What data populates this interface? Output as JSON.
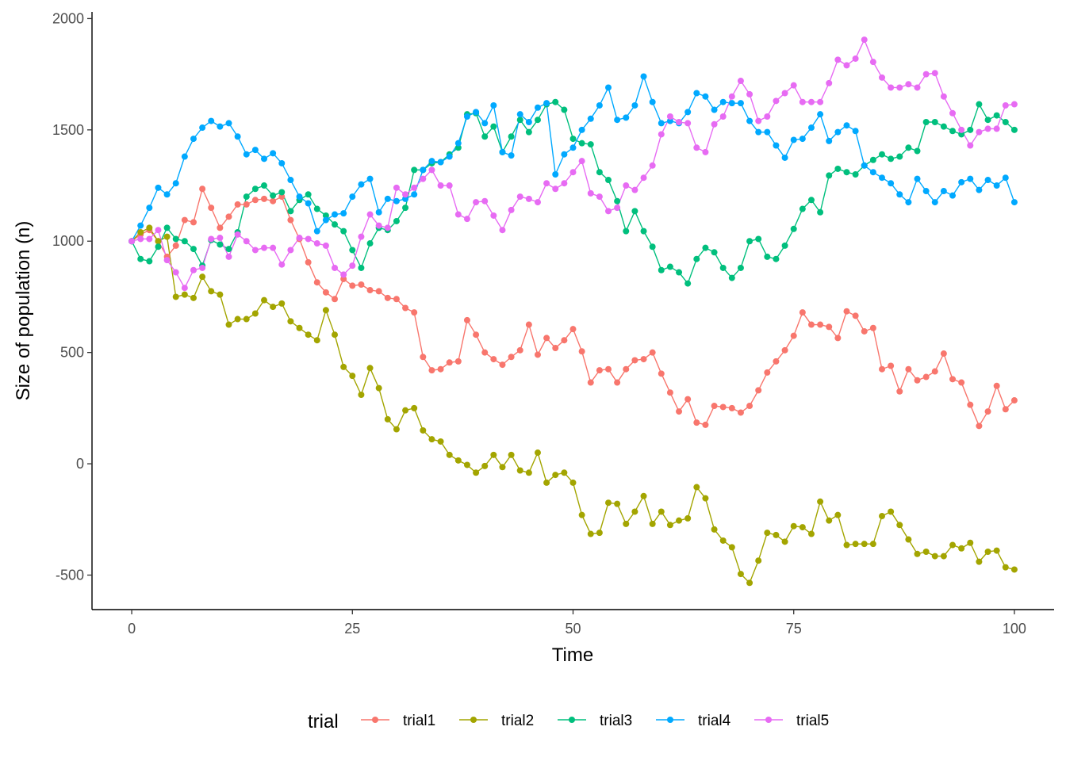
{
  "chart_data": {
    "type": "line",
    "xlabel": "Time",
    "ylabel": "Size of population (n)",
    "xlim": [
      -4.5,
      104.5
    ],
    "ylim": [
      -655,
      2030
    ],
    "x_ticks": [
      0,
      25,
      50,
      75,
      100
    ],
    "y_ticks": [
      -500,
      0,
      500,
      1000,
      1500,
      2000
    ],
    "grid": false,
    "legend": {
      "title": "trial",
      "position": "bottom"
    },
    "markers": true,
    "series": [
      {
        "name": "trial1",
        "color": "#F8766D",
        "values": [
          1000,
          1030,
          1050,
          1000,
          930,
          980,
          1095,
          1085,
          1235,
          1150,
          1060,
          1110,
          1165,
          1165,
          1185,
          1190,
          1180,
          1200,
          1095,
          1010,
          905,
          815,
          770,
          740,
          830,
          800,
          805,
          780,
          775,
          745,
          740,
          700,
          680,
          480,
          420,
          425,
          455,
          460,
          645,
          580,
          500,
          470,
          445,
          480,
          510,
          625,
          490,
          565,
          520,
          555,
          605,
          505,
          365,
          420,
          425,
          365,
          425,
          465,
          470,
          500,
          405,
          320,
          235,
          290,
          185,
          175,
          260,
          255,
          250,
          230,
          260,
          330,
          410,
          460,
          510,
          575,
          680,
          625,
          625,
          615,
          565,
          685,
          665,
          595,
          610,
          425,
          440,
          325,
          425,
          375,
          390,
          415,
          495,
          380,
          365,
          265,
          170,
          235,
          350,
          245,
          285
        ]
      },
      {
        "name": "trial2",
        "color": "#A3A500",
        "values": [
          1000,
          1040,
          1060,
          1000,
          1020,
          750,
          760,
          745,
          840,
          775,
          760,
          625,
          650,
          650,
          675,
          735,
          705,
          720,
          640,
          610,
          580,
          555,
          690,
          580,
          435,
          395,
          310,
          430,
          340,
          200,
          155,
          240,
          250,
          150,
          110,
          100,
          40,
          15,
          -5,
          -40,
          -10,
          40,
          -15,
          40,
          -30,
          -40,
          50,
          -85,
          -50,
          -40,
          -85,
          -230,
          -315,
          -310,
          -175,
          -180,
          -270,
          -215,
          -145,
          -270,
          -215,
          -275,
          -255,
          -245,
          -105,
          -155,
          -295,
          -345,
          -375,
          -495,
          -535,
          -435,
          -310,
          -320,
          -350,
          -280,
          -285,
          -315,
          -170,
          -255,
          -230,
          -365,
          -360,
          -360,
          -360,
          -235,
          -215,
          -275,
          -340,
          -405,
          -395,
          -415,
          -415,
          -365,
          -380,
          -355,
          -440,
          -395,
          -390,
          -465,
          -475
        ]
      },
      {
        "name": "trial3",
        "color": "#00BF7D",
        "values": [
          1000,
          920,
          910,
          975,
          1060,
          1010,
          1000,
          965,
          890,
          1005,
          985,
          965,
          1040,
          1200,
          1235,
          1250,
          1205,
          1220,
          1135,
          1185,
          1210,
          1145,
          1115,
          1075,
          1045,
          960,
          880,
          990,
          1060,
          1050,
          1090,
          1150,
          1320,
          1320,
          1350,
          1355,
          1390,
          1420,
          1570,
          1575,
          1470,
          1515,
          1400,
          1470,
          1545,
          1490,
          1545,
          1615,
          1625,
          1590,
          1460,
          1440,
          1435,
          1310,
          1275,
          1180,
          1045,
          1135,
          1045,
          975,
          870,
          885,
          860,
          810,
          920,
          970,
          950,
          880,
          835,
          880,
          1000,
          1010,
          930,
          920,
          980,
          1055,
          1145,
          1185,
          1130,
          1295,
          1325,
          1310,
          1300,
          1340,
          1365,
          1390,
          1370,
          1380,
          1420,
          1405,
          1535,
          1535,
          1515,
          1495,
          1480,
          1500,
          1615,
          1545,
          1565,
          1535,
          1500
        ]
      },
      {
        "name": "trial4",
        "color": "#00A9FF",
        "values": [
          1000,
          1070,
          1150,
          1240,
          1210,
          1260,
          1380,
          1460,
          1510,
          1540,
          1515,
          1530,
          1470,
          1390,
          1410,
          1370,
          1395,
          1350,
          1275,
          1200,
          1170,
          1045,
          1095,
          1120,
          1125,
          1200,
          1255,
          1280,
          1130,
          1190,
          1180,
          1190,
          1210,
          1320,
          1360,
          1355,
          1380,
          1440,
          1560,
          1580,
          1530,
          1610,
          1400,
          1385,
          1570,
          1535,
          1600,
          1620,
          1300,
          1390,
          1420,
          1500,
          1550,
          1610,
          1690,
          1545,
          1555,
          1610,
          1740,
          1625,
          1530,
          1540,
          1530,
          1580,
          1665,
          1650,
          1590,
          1625,
          1620,
          1620,
          1540,
          1490,
          1490,
          1430,
          1375,
          1455,
          1460,
          1510,
          1570,
          1450,
          1490,
          1520,
          1495,
          1340,
          1310,
          1285,
          1260,
          1210,
          1175,
          1280,
          1225,
          1175,
          1225,
          1205,
          1265,
          1280,
          1230,
          1275,
          1250,
          1285,
          1175
        ]
      },
      {
        "name": "trial5",
        "color": "#E76BF3",
        "values": [
          1000,
          1010,
          1010,
          1050,
          915,
          860,
          790,
          870,
          880,
          1010,
          1015,
          930,
          1030,
          1000,
          960,
          970,
          970,
          895,
          960,
          1015,
          1010,
          990,
          980,
          880,
          850,
          890,
          1020,
          1120,
          1070,
          1060,
          1240,
          1210,
          1240,
          1280,
          1320,
          1250,
          1250,
          1120,
          1100,
          1175,
          1180,
          1115,
          1050,
          1140,
          1200,
          1190,
          1175,
          1260,
          1235,
          1260,
          1310,
          1360,
          1215,
          1200,
          1135,
          1150,
          1250,
          1230,
          1285,
          1340,
          1480,
          1560,
          1535,
          1530,
          1420,
          1400,
          1525,
          1560,
          1650,
          1720,
          1660,
          1540,
          1560,
          1630,
          1665,
          1700,
          1625,
          1625,
          1625,
          1710,
          1815,
          1790,
          1820,
          1905,
          1805,
          1735,
          1690,
          1690,
          1705,
          1690,
          1750,
          1755,
          1650,
          1575,
          1500,
          1430,
          1490,
          1505,
          1505,
          1610,
          1615
        ]
      }
    ]
  }
}
